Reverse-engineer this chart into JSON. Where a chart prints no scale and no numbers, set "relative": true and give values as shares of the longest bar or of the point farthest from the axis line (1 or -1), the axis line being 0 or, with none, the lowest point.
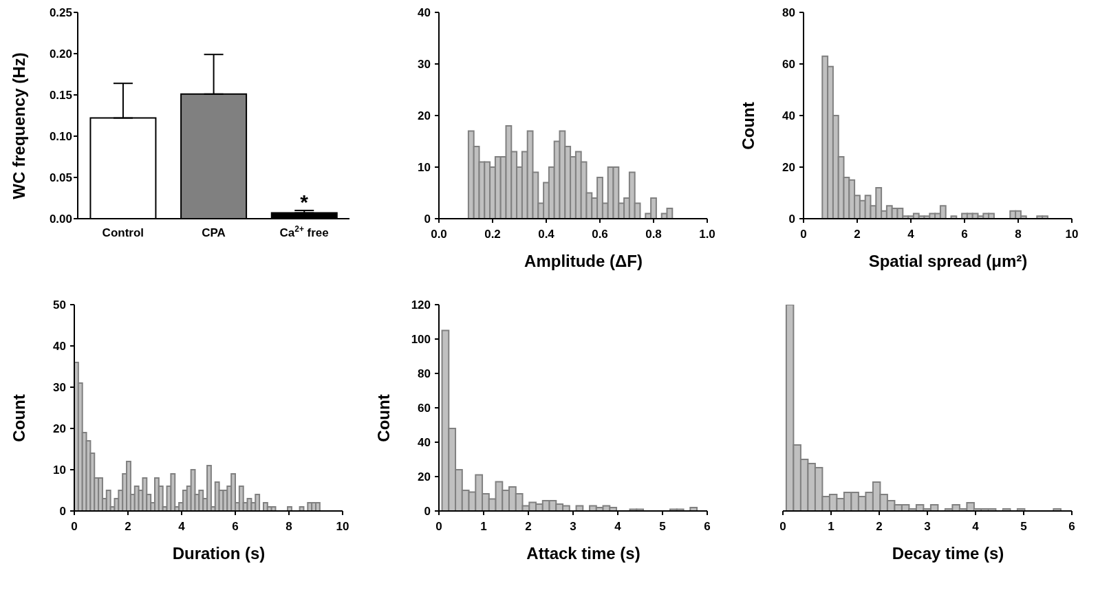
{
  "chart_data": [
    {
      "type": "bar",
      "ylabel": "WC frequency (Hz)",
      "categories": [
        "Control",
        "CPA",
        "Ca$^{2+}$ free"
      ],
      "values": [
        0.122,
        0.151,
        0.007
      ],
      "colors": [
        "#ffffff",
        "#808080",
        "#000000"
      ],
      "errors": [
        [
          0.122,
          0.164
        ],
        [
          0.151,
          0.199
        ],
        [
          0.007,
          0.01
        ]
      ],
      "ylim": [
        0,
        0.25
      ],
      "yticks": [
        {
          "value": 0,
          "label": "0.00"
        },
        {
          "value": 0.05,
          "label": "0.05"
        },
        {
          "value": 0.1,
          "label": "0.10"
        },
        {
          "value": 0.15,
          "label": "0.15"
        },
        {
          "value": 0.2,
          "label": "0.20"
        },
        {
          "value": 0.25,
          "label": "0.25"
        }
      ],
      "annotations": [
        {
          "text": "*",
          "x": "Ca$^{2+}$ free",
          "y": 0.012
        }
      ]
    },
    {
      "type": "histogram",
      "xlabel": "Amplitude (ΔF)",
      "color": "#c0c0c0",
      "bins": [
        0.11,
        0.13,
        0.15,
        0.17,
        0.19,
        0.21,
        0.23,
        0.25,
        0.27,
        0.29,
        0.31,
        0.33,
        0.35,
        0.37,
        0.39,
        0.41,
        0.43,
        0.45,
        0.47,
        0.49,
        0.51,
        0.53,
        0.55,
        0.57,
        0.59,
        0.61,
        0.63,
        0.65,
        0.67,
        0.69,
        0.71,
        0.73,
        0.75,
        0.77,
        0.79,
        0.81,
        0.83,
        0.85,
        0.87
      ],
      "values": [
        17,
        14,
        11,
        11,
        10,
        12,
        12,
        18,
        13,
        10,
        13,
        17,
        9,
        3,
        7,
        10,
        15,
        17,
        14,
        12,
        13,
        11,
        5,
        4,
        8,
        3,
        10,
        10,
        3,
        4,
        9,
        3,
        0,
        1,
        4,
        0,
        1,
        2
      ],
      "xlim": [
        0,
        1
      ],
      "xticks": [
        {
          "value": 0,
          "label": "0.0"
        },
        {
          "value": 0.2,
          "label": "0.2"
        },
        {
          "value": 0.4,
          "label": "0.4"
        },
        {
          "value": 0.6,
          "label": "0.6"
        },
        {
          "value": 0.8,
          "label": "0.8"
        },
        {
          "value": 1,
          "label": "1.0"
        }
      ],
      "ylim": [
        0,
        40
      ],
      "yticks": [
        0,
        10,
        20,
        30,
        40
      ]
    },
    {
      "type": "histogram",
      "xlabel": "Spatial spread (μm²)",
      "ylabel": "Count",
      "color": "#c0c0c0",
      "bins": [
        0.7,
        0.9,
        1.1,
        1.3,
        1.5,
        1.7,
        1.9,
        2.1,
        2.3,
        2.5,
        2.7,
        2.9,
        3.1,
        3.3,
        3.5,
        3.7,
        3.9,
        4.1,
        4.3,
        4.5,
        4.7,
        4.9,
        5.1,
        5.3,
        5.5,
        5.7,
        5.9,
        6.1,
        6.3,
        6.5,
        6.7,
        6.9,
        7.1,
        7.3,
        7.5,
        7.7,
        7.9,
        8.1,
        8.3,
        8.5,
        8.7,
        8.9,
        9.1
      ],
      "values": [
        63,
        59,
        40,
        24,
        16,
        15,
        9,
        7,
        9,
        5,
        12,
        3,
        5,
        4,
        4,
        1,
        1,
        2,
        1,
        1,
        2,
        2,
        5,
        0,
        1,
        0,
        2,
        2,
        2,
        1,
        2,
        2,
        0,
        0,
        0,
        3,
        3,
        1,
        0,
        0,
        1,
        1
      ],
      "xlim": [
        0,
        10
      ],
      "xticks": [
        0,
        2,
        4,
        6,
        8,
        10
      ],
      "ylim": [
        0,
        80
      ],
      "yticks": [
        0,
        20,
        40,
        60,
        80
      ]
    },
    {
      "type": "histogram",
      "xlabel": "Duration (s)",
      "ylabel": "Count",
      "color": "#c0c0c0",
      "bins": [
        0,
        0.15,
        0.3,
        0.45,
        0.6,
        0.75,
        0.9,
        1.05,
        1.2,
        1.35,
        1.5,
        1.65,
        1.8,
        1.95,
        2.1,
        2.25,
        2.4,
        2.55,
        2.7,
        2.85,
        3,
        3.15,
        3.3,
        3.45,
        3.6,
        3.75,
        3.9,
        4.05,
        4.2,
        4.35,
        4.5,
        4.65,
        4.8,
        4.95,
        5.1,
        5.25,
        5.4,
        5.55,
        5.7,
        5.85,
        6,
        6.15,
        6.3,
        6.45,
        6.6,
        6.75,
        6.9,
        7.05,
        7.2,
        7.35,
        7.5,
        7.65,
        7.8,
        7.95,
        8.1,
        8.25,
        8.4,
        8.55,
        8.7,
        8.85,
        9,
        9.15
      ],
      "values": [
        36,
        31,
        19,
        17,
        14,
        8,
        8,
        3,
        5,
        1,
        3,
        5,
        9,
        12,
        4,
        6,
        5,
        8,
        4,
        2,
        8,
        6,
        1,
        6,
        9,
        1,
        2,
        5,
        6,
        10,
        4,
        5,
        3,
        11,
        1,
        7,
        5,
        5,
        6,
        9,
        2,
        6,
        2,
        3,
        2,
        4,
        0,
        2,
        1,
        1,
        0,
        0,
        0,
        1,
        0,
        0,
        1,
        0,
        2,
        2,
        2
      ],
      "xlim": [
        0,
        10
      ],
      "xticks": [
        0,
        2,
        4,
        6,
        8,
        10
      ],
      "ylim": [
        0,
        50
      ],
      "yticks": [
        0,
        10,
        20,
        30,
        40,
        50
      ]
    },
    {
      "type": "histogram",
      "xlabel": "Attack time (s)",
      "ylabel": "Count",
      "color": "#c0c0c0",
      "bins": [
        0.07,
        0.22,
        0.37,
        0.52,
        0.67,
        0.82,
        0.97,
        1.12,
        1.27,
        1.42,
        1.57,
        1.72,
        1.87,
        2.02,
        2.17,
        2.32,
        2.47,
        2.62,
        2.77,
        2.92,
        3.07,
        3.22,
        3.37,
        3.52,
        3.67,
        3.82,
        3.97,
        4.12,
        4.27,
        4.42,
        4.57,
        4.72,
        4.87,
        5.02,
        5.17,
        5.32,
        5.47,
        5.62,
        5.77
      ],
      "values": [
        105,
        48,
        24,
        12,
        11,
        21,
        10,
        7,
        17,
        12,
        14,
        10,
        3,
        5,
        4,
        6,
        6,
        4,
        3,
        0,
        3,
        0,
        3,
        2,
        3,
        2,
        0,
        0,
        1,
        1,
        0,
        0,
        0,
        0,
        1,
        1,
        0,
        2
      ],
      "xlim": [
        0,
        6
      ],
      "xticks": [
        0,
        1,
        2,
        3,
        4,
        5,
        6
      ],
      "ylim": [
        0,
        120
      ],
      "yticks": [
        0,
        20,
        40,
        60,
        80,
        100,
        120
      ]
    },
    {
      "type": "bar",
      "xlabel": "Decay time (s)",
      "color": "#c0c0c0",
      "relative": true,
      "tick_labels": "x",
      "x": [
        0.145,
        0.295,
        0.445,
        0.595,
        0.745,
        0.895,
        1.045,
        1.195,
        1.345,
        1.495,
        1.645,
        1.795,
        1.945,
        2.095,
        2.245,
        2.395,
        2.545,
        2.695,
        2.845,
        2.995,
        3.145,
        3.295,
        3.445,
        3.595,
        3.745,
        3.895,
        4.045,
        4.195,
        4.345,
        4.495,
        4.645,
        4.795,
        4.945,
        5.095,
        5.245,
        5.395,
        5.545,
        5.695
      ],
      "values": [
        1,
        0.32,
        0.25,
        0.23,
        0.21,
        0.07,
        0.08,
        0.06,
        0.09,
        0.09,
        0.07,
        0.09,
        0.14,
        0.08,
        0.05,
        0.03,
        0.03,
        0.01,
        0.03,
        0.01,
        0.03,
        0,
        0.01,
        0.03,
        0.01,
        0.04,
        0.01,
        0.01,
        0.01,
        0,
        0.01,
        0,
        0.01,
        0,
        0,
        0,
        0,
        0.01
      ],
      "xlim": [
        0,
        6
      ],
      "xticks": [
        0,
        1,
        2,
        3,
        4,
        5,
        6
      ]
    }
  ]
}
